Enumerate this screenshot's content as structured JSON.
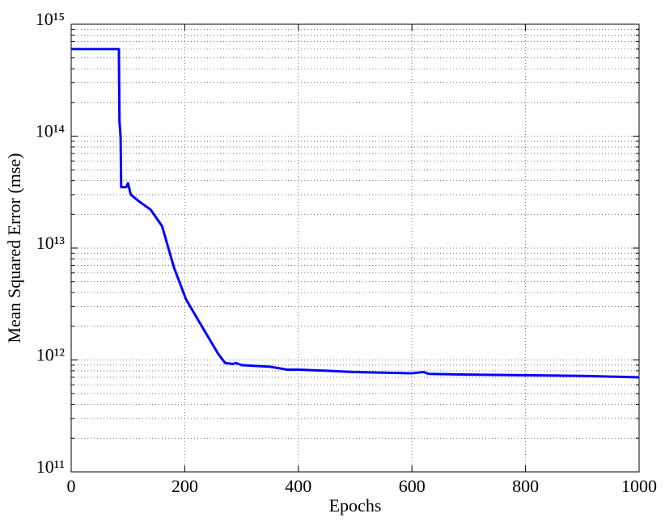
{
  "chart_data": {
    "type": "line",
    "xlabel": "Epochs",
    "ylabel": "Mean Squared Error  (mse)",
    "x": [
      0,
      84,
      85,
      87,
      88,
      97,
      100,
      105,
      120,
      140,
      160,
      181,
      202,
      231,
      259,
      271,
      285,
      290,
      300,
      350,
      380,
      400,
      450,
      500,
      600,
      620,
      630,
      700,
      800,
      900,
      950,
      1000
    ],
    "values": [
      600000000000000.0,
      600000000000000.0,
      136000000000000.0,
      98000000000000.0,
      35000000000000.0,
      35000000000000.0,
      38000000000000.0,
      30000000000000.0,
      26000000000000.0,
      22000000000000.0,
      15700000000000.0,
      6700000000000.0,
      3500000000000.0,
      1960000000000.0,
      1130000000000.0,
      940000000000.0,
      920000000000.0,
      940000000000.0,
      900000000000.0,
      870000000000.0,
      820000000000.0,
      820000000000.0,
      800000000000.0,
      780000000000.0,
      760000000000.0,
      780000000000.0,
      750000000000.0,
      740000000000.0,
      730000000000.0,
      720000000000.0,
      710000000000.0,
      700000000000.0
    ],
    "color": "#0000ff",
    "xlim": [
      0,
      1000
    ],
    "xticks": [
      0,
      200,
      400,
      600,
      800,
      1000
    ],
    "ylim": [
      100000000000.0,
      1000000000000000.0
    ],
    "ylog": true,
    "yticks": [
      {
        "value": 100000000000.0,
        "label": "10¹¹"
      },
      {
        "value": 1000000000000.0,
        "label": "10¹²"
      },
      {
        "value": 10000000000000.0,
        "label": "10¹³"
      },
      {
        "value": 100000000000000.0,
        "label": "10¹⁴"
      },
      {
        "value": 1000000000000000.0,
        "label": "10¹⁵"
      }
    ],
    "grid": true
  }
}
